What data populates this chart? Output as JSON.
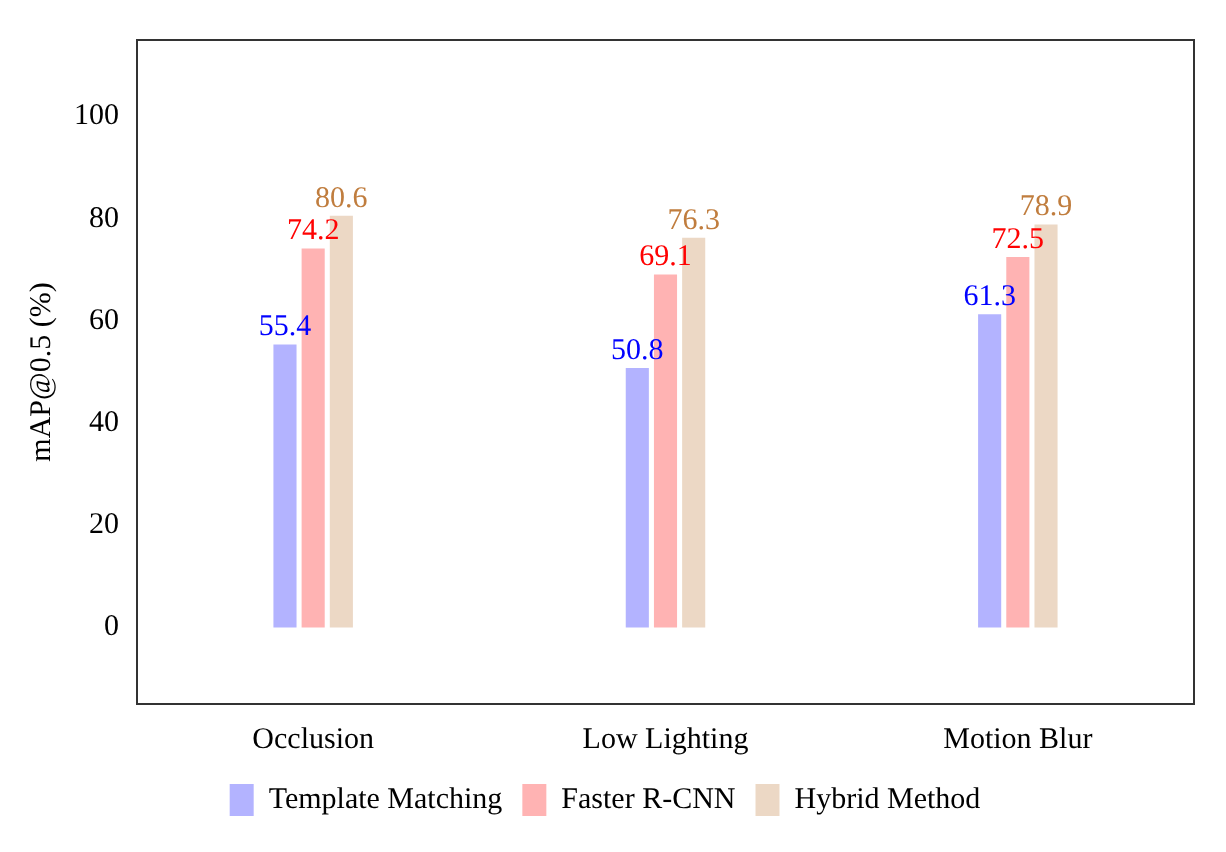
{
  "chart_data": {
    "type": "bar",
    "ylabel": "mAP@0.5 (%)",
    "categories": [
      "Occlusion",
      "Low Lighting",
      "Motion Blur"
    ],
    "series": [
      {
        "name": "Template Matching",
        "color": "#b3b3ff",
        "values": [
          55.4,
          50.8,
          61.3
        ]
      },
      {
        "name": "Faster R-CNN",
        "color": "#ffb3b3",
        "values": [
          74.2,
          69.1,
          72.5
        ]
      },
      {
        "name": "Hybrid Method",
        "color": "#ecd8c5",
        "values": [
          80.6,
          76.3,
          78.9
        ]
      }
    ],
    "ylim": [
      -15,
      115
    ],
    "yticks": [
      0,
      20,
      40,
      60,
      80,
      100
    ],
    "grid": false,
    "legend": "bottom",
    "data_labels": true
  }
}
